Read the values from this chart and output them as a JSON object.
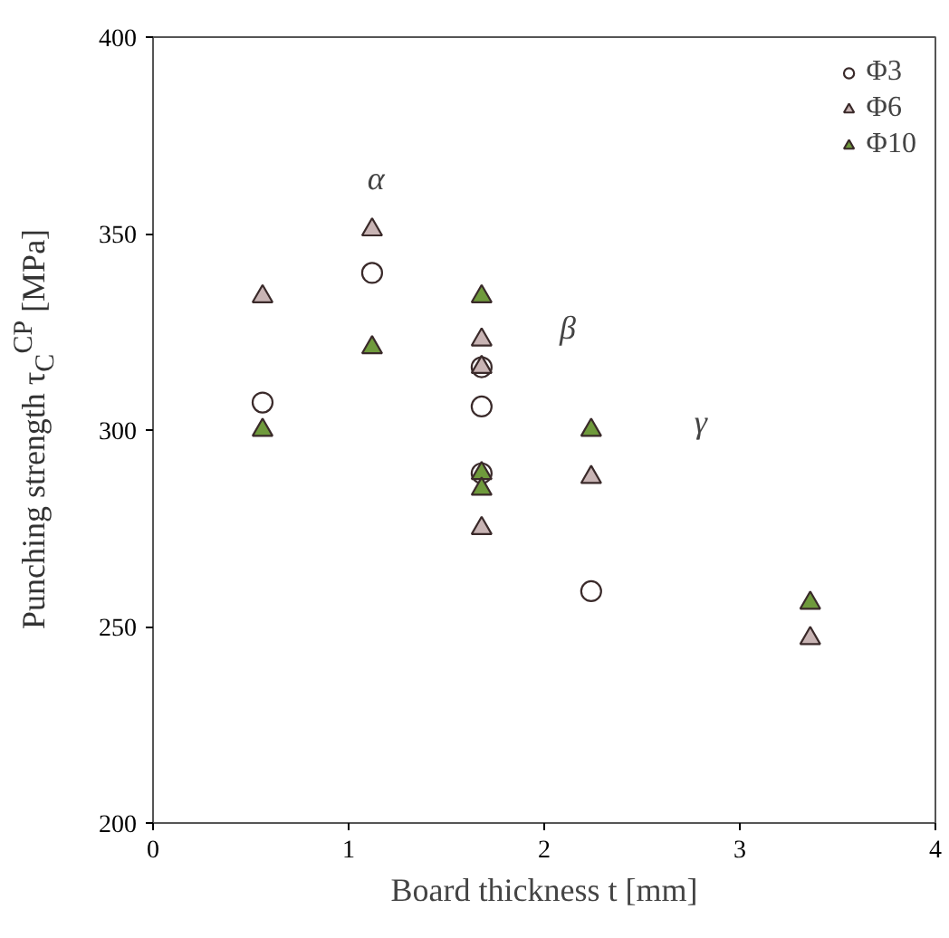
{
  "chart_data": {
    "type": "scatter",
    "xlabel": "Board thickness t [mm]",
    "ylabel": "Punching strength τ$_{C}$$^{CP}$ [MPa]",
    "xlim": [
      0,
      4
    ],
    "xticks": [
      0,
      1,
      2,
      3,
      4
    ],
    "ylim": [
      200,
      400
    ],
    "yticks": [
      200,
      250,
      300,
      350,
      400
    ],
    "grid": false,
    "legend": "top right",
    "series": [
      {
        "name": "Φ3",
        "color": "#ffffff",
        "marker": "circle",
        "x": [
          0.56,
          1.12,
          1.68,
          1.68,
          1.68,
          2.24
        ],
        "values": [
          307,
          340,
          316,
          306,
          289,
          259
        ]
      },
      {
        "name": "Φ6",
        "color": "#c8b4b4",
        "marker": "triangle",
        "x": [
          0.56,
          1.12,
          1.68,
          1.68,
          1.68,
          2.24,
          3.36
        ],
        "values": [
          334,
          351,
          323,
          316,
          275,
          288,
          247
        ]
      },
      {
        "name": "Φ10",
        "color": "#6f9a3c",
        "marker": "triangle",
        "x": [
          0.56,
          1.12,
          1.68,
          1.68,
          1.68,
          2.24,
          3.36
        ],
        "values": [
          300,
          321,
          334,
          289,
          285,
          300,
          256
        ]
      }
    ],
    "annotations": [
      "α",
      "β",
      "γ"
    ]
  }
}
